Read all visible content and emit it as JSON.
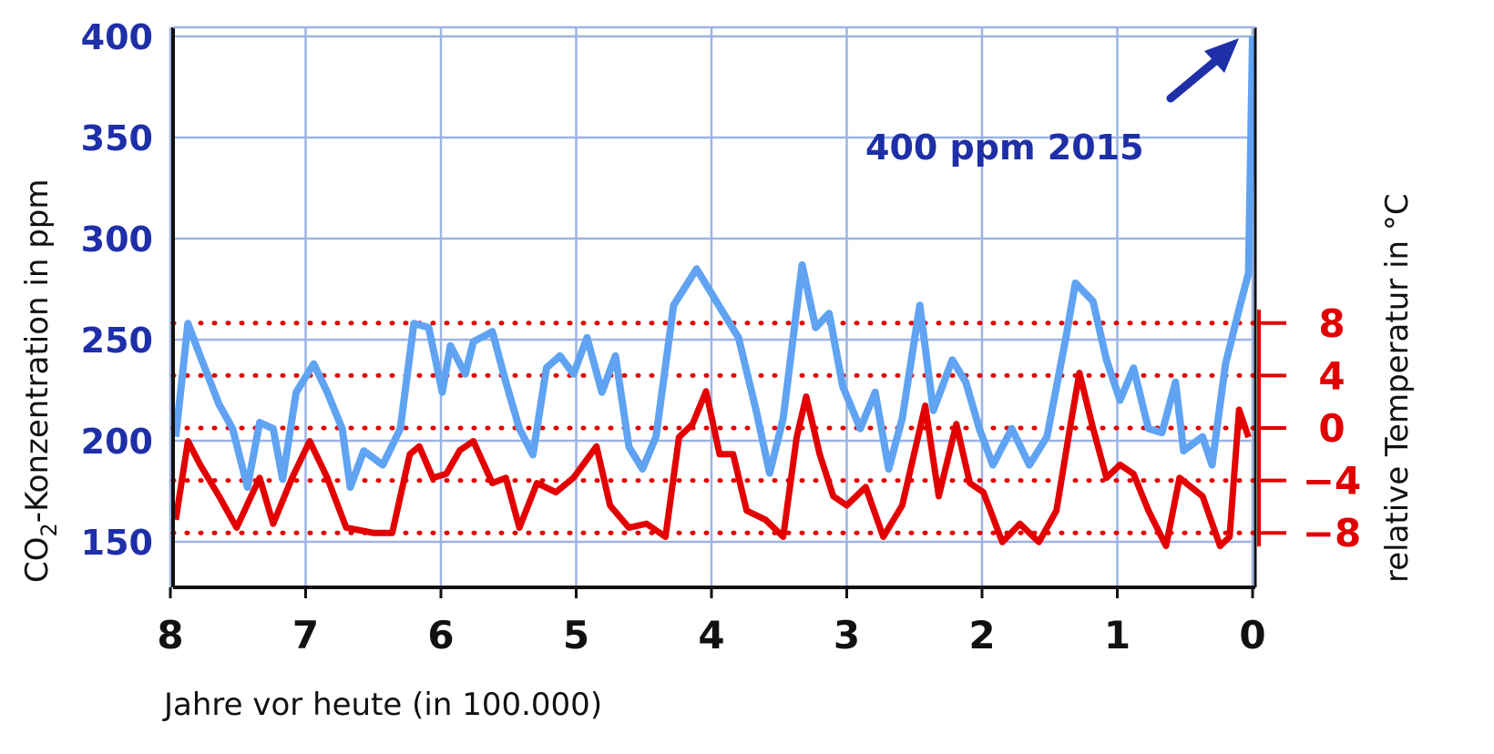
{
  "chart_data": {
    "type": "line",
    "title": "",
    "xlabel": "Jahre vor heute (in 100.000)",
    "ylabel": "CO2-Konzentration in ppm",
    "ylabel_parts": {
      "pre": "CO",
      "sub": "2",
      "post": "-Konzentration in ppm"
    },
    "y2label": "relative Temperatur in °C",
    "xlim": [
      8,
      0
    ],
    "ylim": [
      128,
      405
    ],
    "y2lim": [
      -8,
      8
    ],
    "x_ticks": [
      "8",
      "7",
      "6",
      "5",
      "4",
      "3",
      "2",
      "1",
      "0"
    ],
    "y_ticks": [
      "400",
      "350",
      "300",
      "250",
      "200",
      "150"
    ],
    "y2_ticks": [
      "8",
      "4",
      "0",
      "-4",
      "-8"
    ],
    "grid": true,
    "annotation": "400 ppm 2015",
    "colors": {
      "co2": "#5fa3f2",
      "temp": "#e30000",
      "grid": "#9db3e6",
      "axis_left": "#1e2fa8"
    },
    "series": [
      {
        "name": "CO2 (ppm)",
        "axis": "left",
        "x": [
          7.96,
          7.87,
          7.78,
          7.64,
          7.54,
          7.43,
          7.34,
          7.24,
          7.17,
          7.07,
          6.94,
          6.84,
          6.73,
          6.67,
          6.57,
          6.43,
          6.3,
          6.2,
          6.09,
          5.99,
          5.93,
          5.82,
          5.76,
          5.62,
          5.52,
          5.42,
          5.32,
          5.22,
          5.12,
          5.02,
          4.92,
          4.81,
          4.71,
          4.61,
          4.51,
          4.41,
          4.28,
          4.11,
          4.01,
          3.91,
          3.8,
          3.67,
          3.57,
          3.47,
          3.33,
          3.23,
          3.13,
          3.03,
          2.9,
          2.79,
          2.69,
          2.59,
          2.46,
          2.36,
          2.22,
          2.12,
          2.02,
          1.92,
          1.78,
          1.65,
          1.52,
          1.38,
          1.31,
          1.18,
          1.08,
          0.98,
          0.88,
          0.77,
          0.67,
          0.57,
          0.51,
          0.37,
          0.3,
          0.2,
          0.1,
          0.03,
          0.0
        ],
        "values": [
          202,
          258,
          242,
          218,
          206,
          177,
          209,
          206,
          181,
          224,
          238,
          224,
          206,
          177,
          195,
          188,
          206,
          258,
          256,
          224,
          247,
          233,
          249,
          254,
          229,
          206,
          193,
          236,
          242,
          233,
          251,
          224,
          242,
          197,
          186,
          202,
          267,
          285,
          274,
          263,
          251,
          215,
          184,
          211,
          287,
          256,
          263,
          227,
          206,
          224,
          186,
          211,
          267,
          215,
          240,
          229,
          206,
          188,
          206,
          188,
          202,
          251,
          278,
          269,
          240,
          220,
          236,
          206,
          204,
          229,
          195,
          202,
          188,
          238,
          265,
          283,
          400
        ]
      },
      {
        "name": "Temperatur (°C)",
        "axis": "right",
        "x": [
          7.96,
          7.87,
          7.78,
          7.64,
          7.51,
          7.34,
          7.24,
          7.1,
          6.97,
          6.84,
          6.7,
          6.5,
          6.36,
          6.23,
          6.16,
          6.06,
          5.96,
          5.86,
          5.76,
          5.62,
          5.52,
          5.42,
          5.29,
          5.15,
          5.02,
          4.85,
          4.75,
          4.61,
          4.48,
          4.34,
          4.24,
          4.14,
          4.04,
          3.94,
          3.84,
          3.74,
          3.6,
          3.47,
          3.37,
          3.3,
          3.2,
          3.1,
          3.0,
          2.86,
          2.73,
          2.59,
          2.42,
          2.32,
          2.19,
          2.09,
          1.99,
          1.85,
          1.72,
          1.58,
          1.45,
          1.35,
          1.28,
          1.18,
          1.08,
          0.98,
          0.88,
          0.77,
          0.64,
          0.54,
          0.37,
          0.24,
          0.17,
          0.1,
          0.03
        ],
        "values": [
          -7,
          -1,
          -2.8,
          -5.2,
          -7.6,
          -3.8,
          -7.3,
          -3.8,
          -1,
          -3.8,
          -7.6,
          -8,
          -8,
          -2,
          -1.4,
          -3.8,
          -3.5,
          -1.7,
          -1,
          -4.2,
          -3.8,
          -7.6,
          -4.2,
          -4.9,
          -3.8,
          -1.4,
          -5.9,
          -7.6,
          -7.3,
          -8.3,
          -0.7,
          0.3,
          2.8,
          -2,
          -2,
          -6.3,
          -7,
          -8.3,
          -0.7,
          2.4,
          -2,
          -5.2,
          -5.9,
          -4.5,
          -8.3,
          -5.9,
          1.7,
          -5.2,
          0.3,
          -4.2,
          -4.9,
          -8.7,
          -7.3,
          -8.7,
          -6.3,
          0,
          4.2,
          0,
          -3.8,
          -2.8,
          -3.5,
          -6.3,
          -9,
          -3.8,
          -5.2,
          -9,
          -8.3,
          1.4,
          -0.7
        ]
      }
    ]
  }
}
